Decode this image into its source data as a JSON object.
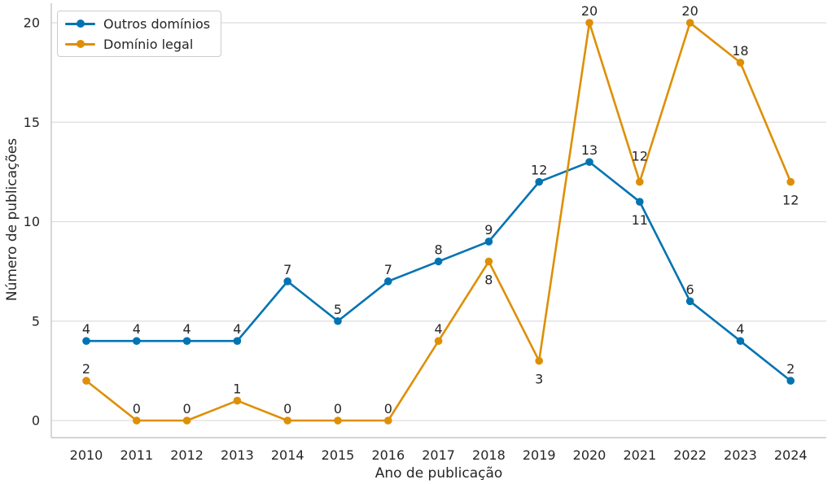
{
  "chart_data": {
    "type": "line",
    "title": "",
    "xlabel": "Ano de publicação",
    "ylabel": "Número de publicações",
    "categories": [
      "2010",
      "2011",
      "2012",
      "2013",
      "2014",
      "2015",
      "2016",
      "2017",
      "2018",
      "2019",
      "2020",
      "2021",
      "2022",
      "2023",
      "2024"
    ],
    "yticks": [
      0,
      5,
      10,
      15,
      20
    ],
    "ylim": [
      0,
      20
    ],
    "grid": "horizontal-only",
    "legend_position": "upper-left",
    "colors": {
      "grid": "#dedede",
      "spine": "#c6c6c6",
      "text": "#262626"
    },
    "series": [
      {
        "name": "Outros domínios",
        "color": "#0173b2",
        "values": [
          4,
          4,
          4,
          4,
          7,
          5,
          7,
          8,
          9,
          12,
          13,
          11,
          6,
          4,
          2
        ],
        "label_side": [
          "above",
          "above",
          "above",
          "above",
          "above",
          "above",
          "above",
          "above",
          "above",
          "above",
          "above",
          "below",
          "above",
          "above",
          "above"
        ]
      },
      {
        "name": "Domínio legal",
        "color": "#de8f05",
        "values": [
          2,
          0,
          0,
          1,
          0,
          0,
          0,
          4,
          8,
          3,
          20,
          12,
          20,
          18,
          12
        ],
        "label_side": [
          "above",
          "above",
          "above",
          "above",
          "above",
          "above",
          "above",
          "above",
          "below",
          "below",
          "above",
          "above-far",
          "above",
          "above",
          "below"
        ]
      }
    ]
  }
}
